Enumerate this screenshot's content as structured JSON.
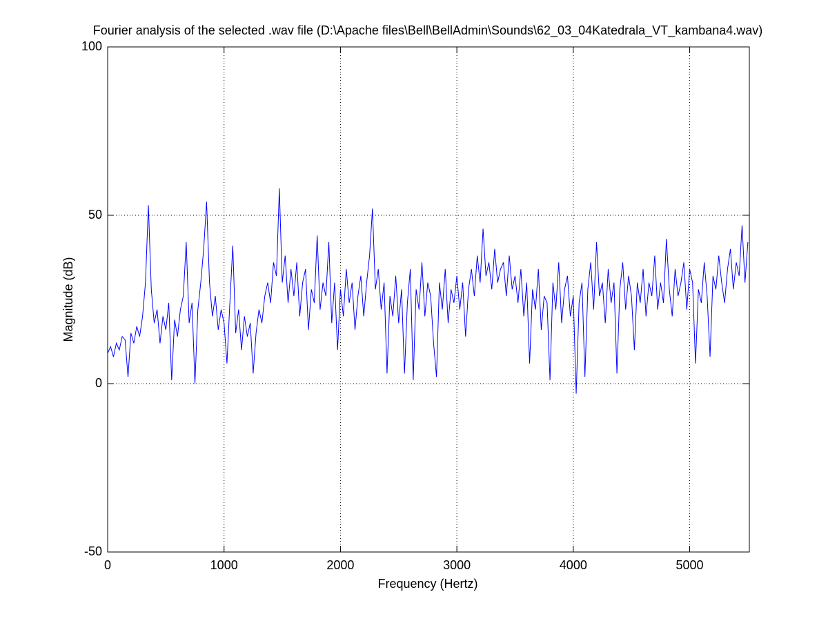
{
  "chart_data": {
    "type": "line",
    "title": "Fourier analysis of the selected .wav file (D:\\Apache files\\Bell\\BellAdmin\\Sounds\\62_03_04Katedrala_VT_kambana4.wav)",
    "xlabel": "Frequency (Hertz)",
    "ylabel": "Magnitude (dB)",
    "color": "#0000ff",
    "grid": true,
    "xlim": [
      0,
      5512.5
    ],
    "xticks": [
      0,
      1000,
      2000,
      3000,
      4000,
      5000
    ],
    "ylim": [
      -50,
      100
    ],
    "yticks": [
      -50,
      0,
      50,
      100
    ],
    "x": [
      0,
      25,
      50,
      75,
      100,
      125,
      150,
      175,
      200,
      225,
      250,
      275,
      300,
      325,
      350,
      375,
      400,
      425,
      450,
      475,
      500,
      525,
      550,
      575,
      600,
      625,
      650,
      675,
      700,
      725,
      750,
      775,
      800,
      825,
      850,
      875,
      900,
      925,
      950,
      975,
      1000,
      1025,
      1050,
      1075,
      1100,
      1125,
      1150,
      1175,
      1200,
      1225,
      1250,
      1275,
      1300,
      1325,
      1350,
      1375,
      1400,
      1425,
      1450,
      1475,
      1500,
      1525,
      1550,
      1575,
      1600,
      1625,
      1650,
      1675,
      1700,
      1725,
      1750,
      1775,
      1800,
      1825,
      1850,
      1875,
      1900,
      1925,
      1950,
      1975,
      2000,
      2025,
      2050,
      2075,
      2100,
      2125,
      2150,
      2175,
      2200,
      2225,
      2250,
      2275,
      2300,
      2325,
      2350,
      2375,
      2400,
      2425,
      2450,
      2475,
      2500,
      2525,
      2550,
      2575,
      2600,
      2625,
      2650,
      2675,
      2700,
      2725,
      2750,
      2775,
      2800,
      2825,
      2850,
      2875,
      2900,
      2925,
      2950,
      2975,
      3000,
      3025,
      3050,
      3075,
      3100,
      3125,
      3150,
      3175,
      3200,
      3225,
      3250,
      3275,
      3300,
      3325,
      3350,
      3375,
      3400,
      3425,
      3450,
      3475,
      3500,
      3525,
      3550,
      3575,
      3600,
      3625,
      3650,
      3675,
      3700,
      3725,
      3750,
      3775,
      3800,
      3825,
      3850,
      3875,
      3900,
      3925,
      3950,
      3975,
      4000,
      4025,
      4050,
      4075,
      4100,
      4125,
      4150,
      4175,
      4200,
      4225,
      4250,
      4275,
      4300,
      4325,
      4350,
      4375,
      4400,
      4425,
      4450,
      4475,
      4500,
      4525,
      4550,
      4575,
      4600,
      4625,
      4650,
      4675,
      4700,
      4725,
      4750,
      4775,
      4800,
      4825,
      4850,
      4875,
      4900,
      4925,
      4950,
      4975,
      5000,
      5025,
      5050,
      5075,
      5100,
      5125,
      5150,
      5175,
      5200,
      5225,
      5250,
      5275,
      5300,
      5325,
      5350,
      5375,
      5400,
      5425,
      5450,
      5475,
      5500
    ],
    "values": [
      9,
      11,
      8,
      12,
      10,
      14,
      13,
      2,
      15,
      12,
      17,
      14,
      20,
      30,
      53,
      28,
      18,
      22,
      12,
      20,
      16,
      24,
      1,
      19,
      14,
      22,
      26,
      42,
      18,
      24,
      0,
      22,
      30,
      40,
      54,
      30,
      20,
      26,
      16,
      22,
      18,
      6,
      24,
      41,
      15,
      22,
      10,
      20,
      14,
      18,
      3,
      15,
      22,
      18,
      26,
      30,
      24,
      36,
      32,
      58,
      30,
      38,
      24,
      34,
      26,
      36,
      20,
      30,
      34,
      16,
      28,
      24,
      44,
      22,
      30,
      26,
      42,
      18,
      30,
      10,
      28,
      20,
      34,
      24,
      30,
      16,
      26,
      32,
      20,
      30,
      38,
      52,
      28,
      34,
      22,
      30,
      3,
      26,
      20,
      32,
      18,
      28,
      3,
      24,
      34,
      1,
      28,
      22,
      36,
      20,
      30,
      26,
      12,
      2,
      30,
      22,
      34,
      18,
      28,
      24,
      32,
      22,
      30,
      14,
      28,
      34,
      26,
      38,
      30,
      46,
      32,
      36,
      28,
      40,
      30,
      34,
      36,
      26,
      38,
      28,
      32,
      24,
      34,
      20,
      30,
      6,
      28,
      22,
      34,
      16,
      26,
      24,
      1,
      30,
      22,
      36,
      18,
      28,
      32,
      20,
      26,
      -3,
      24,
      30,
      2,
      28,
      36,
      22,
      42,
      26,
      30,
      18,
      34,
      24,
      30,
      3,
      28,
      36,
      22,
      32,
      26,
      10,
      30,
      24,
      34,
      20,
      30,
      26,
      38,
      22,
      30,
      24,
      43,
      28,
      20,
      34,
      26,
      30,
      36,
      22,
      34,
      30,
      6,
      28,
      24,
      36,
      26,
      8,
      32,
      28,
      38,
      30,
      24,
      34,
      40,
      28,
      36,
      32,
      47,
      30,
      42
    ]
  }
}
